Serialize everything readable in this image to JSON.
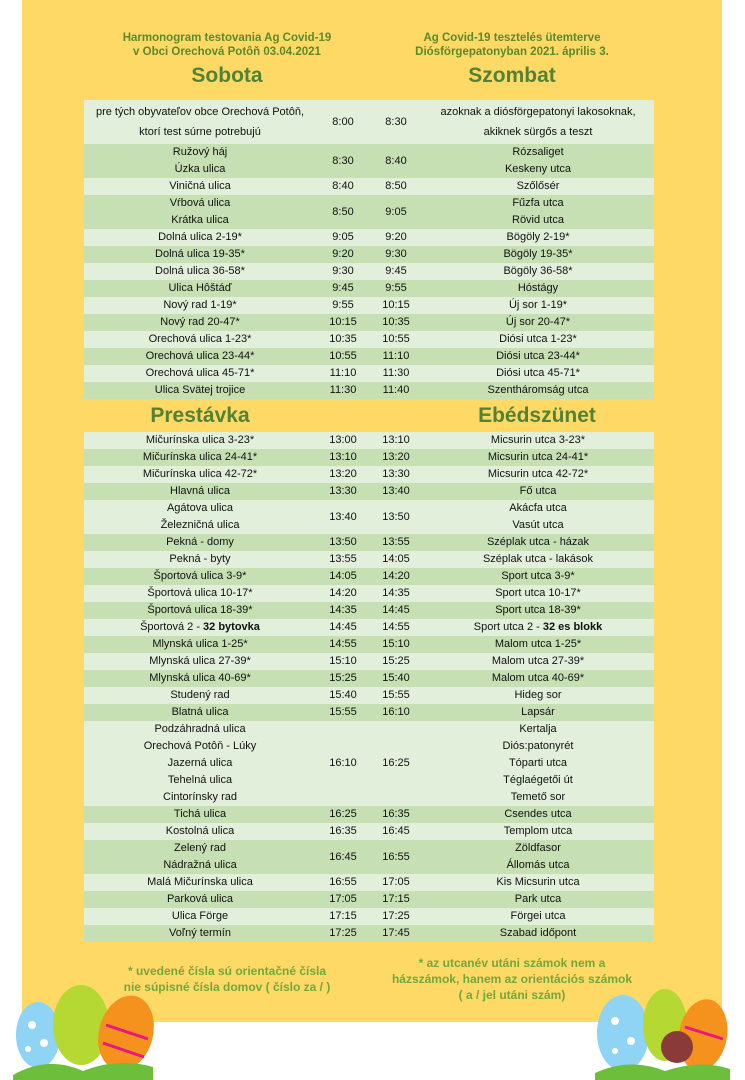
{
  "colors": {
    "background": "#FFD966",
    "title": "#548235",
    "row_light": "#E2EFDA",
    "row_dark": "#C6E0B4"
  },
  "header": {
    "sk_line1": "Harmonogram testovania Ag Covid-19",
    "sk_line2": "v Obci Orechová Potôň 03.04.2021",
    "hu_line1": "Ag Covid-19 tesztelés ütemterve",
    "hu_line2": "Diósförgepatonyban 2021. április 3."
  },
  "morning": {
    "sk_title": "Sobota",
    "hu_title": "Szombat",
    "rows": [
      {
        "sk": [
          "pre tých obyvateľov obce Orechová Potôň,",
          "ktorí test súrne potrebujú"
        ],
        "from": "8:00",
        "to": "8:30",
        "hu": [
          "azoknak a diósförgepatonyi lakosoknak,",
          "akiknek sürgős a teszt"
        ]
      },
      {
        "sk": [
          "Ružový háj",
          "Úzka ulica"
        ],
        "from": "8:30",
        "to": "8:40",
        "hu": [
          "Rózsaliget",
          "Keskeny utca"
        ]
      },
      {
        "sk": [
          "Viničná ulica"
        ],
        "from": "8:40",
        "to": "8:50",
        "hu": [
          "Szőlősér"
        ]
      },
      {
        "sk": [
          "Vŕbová ulica",
          "Krátka ulica"
        ],
        "from": "8:50",
        "to": "9:05",
        "hu": [
          "Fűzfa utca",
          "Rövid utca"
        ]
      },
      {
        "sk": [
          "Dolná ulica 2-19*"
        ],
        "from": "9:05",
        "to": "9:20",
        "hu": [
          "Bögöly 2-19*"
        ]
      },
      {
        "sk": [
          "Dolná ulica 19-35*"
        ],
        "from": "9:20",
        "to": "9:30",
        "hu": [
          "Bögöly 19-35*"
        ]
      },
      {
        "sk": [
          "Dolná ulica 36-58*"
        ],
        "from": "9:30",
        "to": "9:45",
        "hu": [
          "Bögöly 36-58*"
        ]
      },
      {
        "sk": [
          "Ulica Hôštáď"
        ],
        "from": "9:45",
        "to": "9:55",
        "hu": [
          "Hóstágy"
        ]
      },
      {
        "sk": [
          "Nový rad 1-19*"
        ],
        "from": "9:55",
        "to": "10:15",
        "hu": [
          "Új sor 1-19*"
        ]
      },
      {
        "sk": [
          "Nový rad 20-47*"
        ],
        "from": "10:15",
        "to": "10:35",
        "hu": [
          "Új sor 20-47*"
        ]
      },
      {
        "sk": [
          "Orechová ulica 1-23*"
        ],
        "from": "10:35",
        "to": "10:55",
        "hu": [
          "Diósi utca 1-23*"
        ]
      },
      {
        "sk": [
          "Orechová ulica 23-44*"
        ],
        "from": "10:55",
        "to": "11:10",
        "hu": [
          "Diósi utca 23-44*"
        ]
      },
      {
        "sk": [
          "Orechová ulica 45-71*"
        ],
        "from": "11:10",
        "to": "11:30",
        "hu": [
          "Diósi utca 45-71*"
        ]
      },
      {
        "sk": [
          "Ulica Svätej trojice"
        ],
        "from": "11:30",
        "to": "11:40",
        "hu": [
          "Szentháromság utca"
        ]
      }
    ]
  },
  "afternoon": {
    "sk_title": "Prestávka",
    "hu_title": "Ebédszünet",
    "rows": [
      {
        "sk": [
          "Mičurínska ulica 3-23*"
        ],
        "from": "13:00",
        "to": "13:10",
        "hu": [
          "Micsurin utca 3-23*"
        ]
      },
      {
        "sk": [
          "Mičurínska ulica 24-41*"
        ],
        "from": "13:10",
        "to": "13:20",
        "hu": [
          "Micsurin utca 24-41*"
        ]
      },
      {
        "sk": [
          "Mičurínska ulica 42-72*"
        ],
        "from": "13:20",
        "to": "13:30",
        "hu": [
          "Micsurin utca 42-72*"
        ]
      },
      {
        "sk": [
          "Hlavná ulica"
        ],
        "from": "13:30",
        "to": "13:40",
        "hu": [
          "Fő utca"
        ]
      },
      {
        "sk": [
          "Agátova ulica",
          "Železničná ulica"
        ],
        "from": "13:40",
        "to": "13:50",
        "hu": [
          "Akácfa utca",
          "Vasút utca"
        ]
      },
      {
        "sk": [
          "Pekná - domy"
        ],
        "from": "13:50",
        "to": "13:55",
        "hu": [
          "Széplak utca - házak"
        ]
      },
      {
        "sk": [
          "Pekná - byty"
        ],
        "from": "13:55",
        "to": "14:05",
        "hu": [
          "Széplak utca - lakások"
        ]
      },
      {
        "sk": [
          "Športová ulica 3-9*"
        ],
        "from": "14:05",
        "to": "14:20",
        "hu": [
          "Sport utca 3-9*"
        ]
      },
      {
        "sk": [
          "Športová ulica 10-17*"
        ],
        "from": "14:20",
        "to": "14:35",
        "hu": [
          "Sport utca 10-17*"
        ]
      },
      {
        "sk": [
          "Športová ulica 18-39*"
        ],
        "from": "14:35",
        "to": "14:45",
        "hu": [
          "Sport utca 18-39*"
        ]
      },
      {
        "sk": [
          "Športová 2 - "
        ],
        "sk_bold": "32 bytovka",
        "from": "14:45",
        "to": "14:55",
        "hu": [
          "Sport utca 2 - "
        ],
        "hu_bold": "32 es blokk"
      },
      {
        "sk": [
          "Mlynská ulica 1-25*"
        ],
        "from": "14:55",
        "to": "15:10",
        "hu": [
          "Malom utca 1-25*"
        ]
      },
      {
        "sk": [
          "Mlynská ulica 27-39*"
        ],
        "from": "15:10",
        "to": "15:25",
        "hu": [
          "Malom utca 27-39*"
        ]
      },
      {
        "sk": [
          "Mlynská ulica 40-69*"
        ],
        "from": "15:25",
        "to": "15:40",
        "hu": [
          "Malom utca 40-69*"
        ]
      },
      {
        "sk": [
          "Studený rad"
        ],
        "from": "15:40",
        "to": "15:55",
        "hu": [
          "Hideg sor"
        ]
      },
      {
        "sk": [
          "Blatná ulica"
        ],
        "from": "15:55",
        "to": "16:10",
        "hu": [
          "Lapsár"
        ]
      },
      {
        "sk": [
          "Podzáhradná ulica",
          "Orechová Potôň - Lúky",
          "Jazerná ulica",
          "Tehelná ulica",
          "Cintorínsky rad"
        ],
        "from": "16:10",
        "to": "16:25",
        "hu": [
          "Kertalja",
          "Diós:patonyrét",
          "Tóparti utca",
          "Téglaégetői út",
          "Temető sor"
        ]
      },
      {
        "sk": [
          "Tichá ulica"
        ],
        "from": "16:25",
        "to": "16:35",
        "hu": [
          "Csendes utca"
        ]
      },
      {
        "sk": [
          "Kostolná ulica"
        ],
        "from": "16:35",
        "to": "16:45",
        "hu": [
          "Templom utca"
        ]
      },
      {
        "sk": [
          "Zelený rad",
          "Nádražná ulica"
        ],
        "from": "16:45",
        "to": "16:55",
        "hu": [
          "Zöldfasor",
          "Állomás utca"
        ]
      },
      {
        "sk": [
          "Malá Mičurínska ulica"
        ],
        "from": "16:55",
        "to": "17:05",
        "hu": [
          "Kis Micsurin utca"
        ]
      },
      {
        "sk": [
          "Parková ulica"
        ],
        "from": "17:05",
        "to": "17:15",
        "hu": [
          "Park utca"
        ]
      },
      {
        "sk": [
          "Ulica Förge"
        ],
        "from": "17:15",
        "to": "17:25",
        "hu": [
          "Förgei utca"
        ]
      },
      {
        "sk": [
          "Voľný termín"
        ],
        "from": "17:25",
        "to": "17:45",
        "hu": [
          "Szabad időpont"
        ]
      }
    ]
  },
  "footnotes": {
    "sk_line1": "* uvedené čísla sú orientačné čísla",
    "sk_line2": "nie súpisné čísla domov  ( číslo za / )",
    "hu_line1": "* az utcanév utáni számok nem a",
    "hu_line2": "házszámok, hanem az orientációs számok",
    "hu_line3": "( a / jel utáni szám)"
  },
  "decorations": [
    "easter-eggs-left",
    "easter-eggs-with-virus-right"
  ]
}
